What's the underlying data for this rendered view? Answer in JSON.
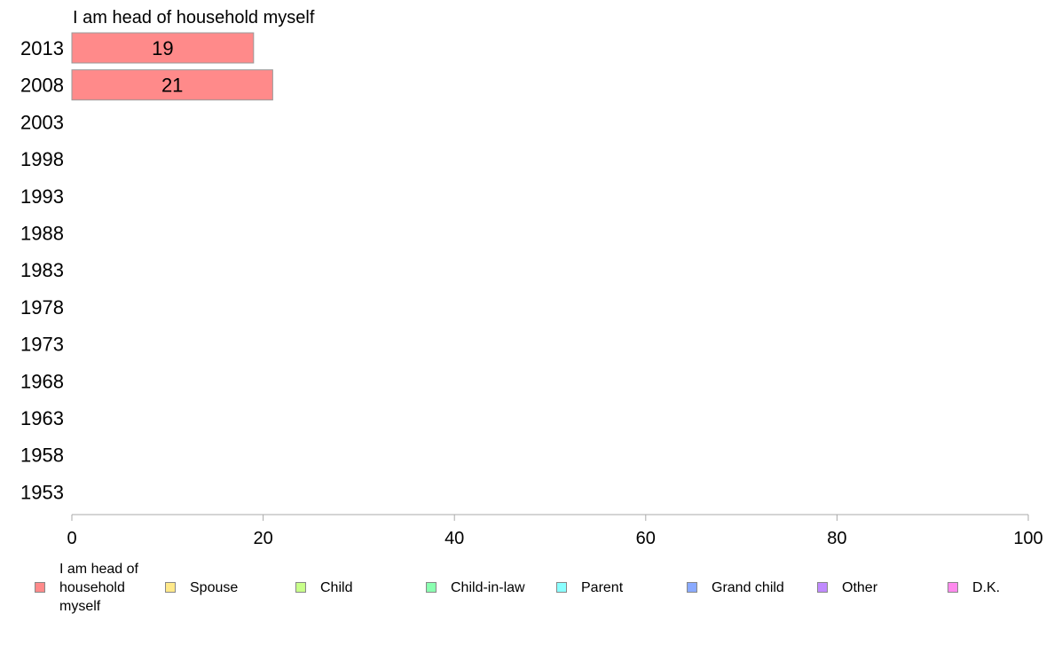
{
  "chart_data": {
    "type": "bar",
    "orientation": "horizontal",
    "stacked": true,
    "title": "I am head of household myself",
    "categories": [
      "2013",
      "2008",
      "2003",
      "1998",
      "1993",
      "1988",
      "1983",
      "1978",
      "1973",
      "1968",
      "1963",
      "1958",
      "1953"
    ],
    "series": [
      {
        "name": "I am head of household myself",
        "color": "#ff8a8a",
        "values": [
          19,
          21,
          null,
          null,
          null,
          null,
          null,
          null,
          null,
          null,
          null,
          null,
          null
        ]
      },
      {
        "name": "Spouse",
        "color": "#ffe98a",
        "values": [
          null,
          null,
          null,
          null,
          null,
          null,
          null,
          null,
          null,
          null,
          null,
          null,
          null
        ]
      },
      {
        "name": "Child",
        "color": "#c8ff8a",
        "values": [
          null,
          null,
          null,
          null,
          null,
          null,
          null,
          null,
          null,
          null,
          null,
          null,
          null
        ]
      },
      {
        "name": "Child-in-law",
        "color": "#8affb0",
        "values": [
          null,
          null,
          null,
          null,
          null,
          null,
          null,
          null,
          null,
          null,
          null,
          null,
          null
        ]
      },
      {
        "name": "Parent",
        "color": "#8affff",
        "values": [
          null,
          null,
          null,
          null,
          null,
          null,
          null,
          null,
          null,
          null,
          null,
          null,
          null
        ]
      },
      {
        "name": "Grand child",
        "color": "#8aaaff",
        "values": [
          null,
          null,
          null,
          null,
          null,
          null,
          null,
          null,
          null,
          null,
          null,
          null,
          null
        ]
      },
      {
        "name": "Other",
        "color": "#c08aff",
        "values": [
          null,
          null,
          null,
          null,
          null,
          null,
          null,
          null,
          null,
          null,
          null,
          null,
          null
        ]
      },
      {
        "name": "D.K.",
        "color": "#ff8aee",
        "values": [
          null,
          null,
          null,
          null,
          null,
          null,
          null,
          null,
          null,
          null,
          null,
          null,
          null
        ]
      }
    ],
    "xlim": [
      0,
      100
    ],
    "xticks": [
      0,
      20,
      40,
      60,
      80,
      100
    ],
    "xlabel": "",
    "ylabel": "",
    "grid": false,
    "legend_position": "bottom"
  }
}
